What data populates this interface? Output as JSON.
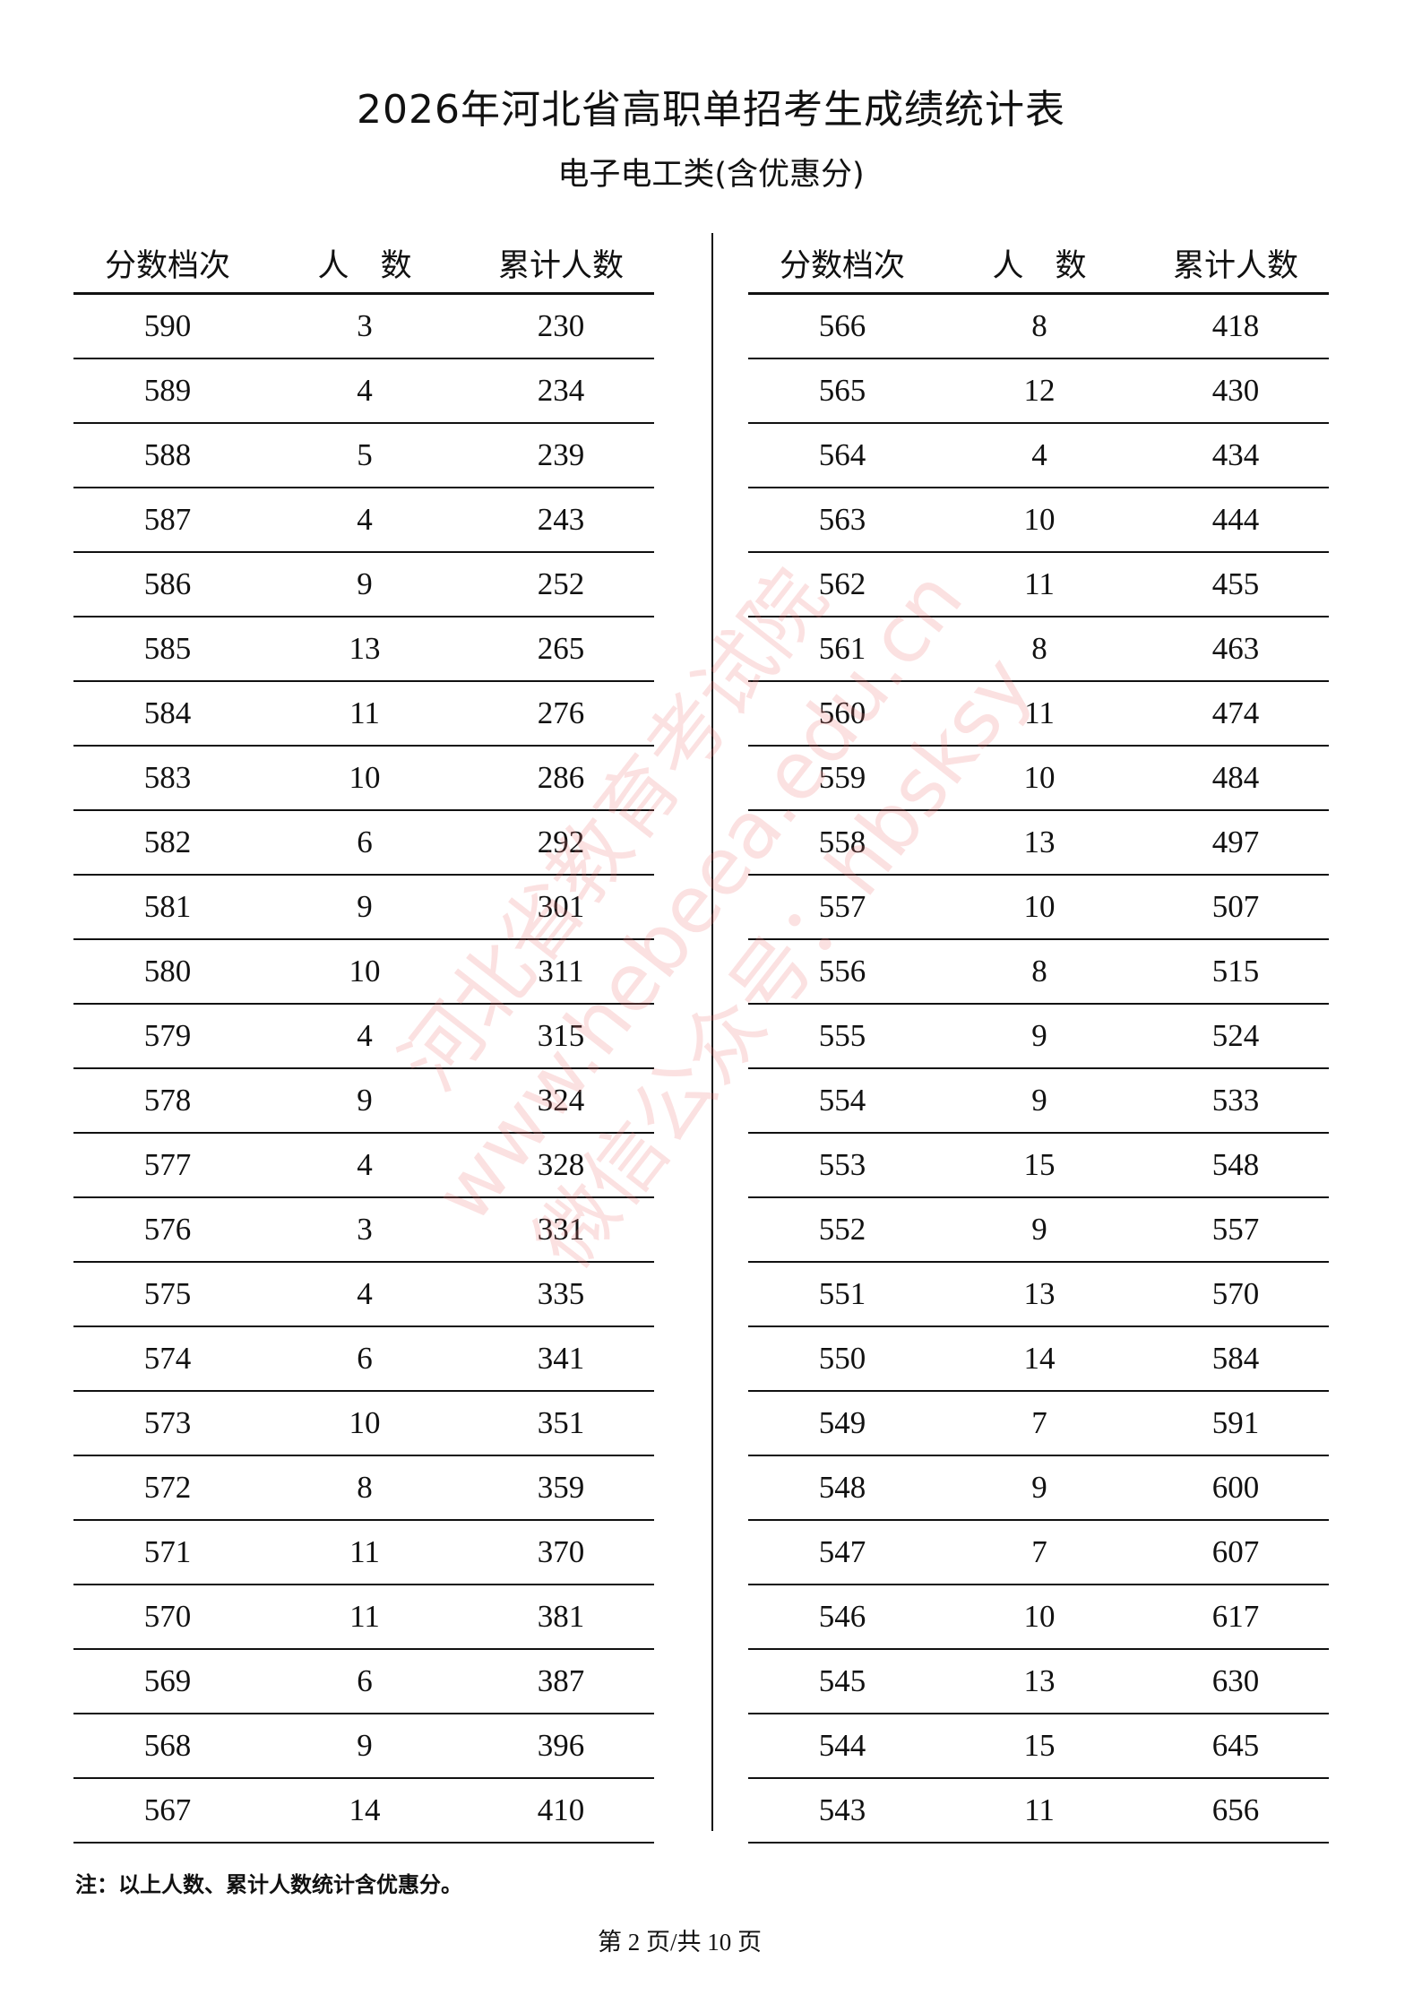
{
  "title": "2026年河北省高职单招考生成绩统计表",
  "subtitle": "电子电工类(含优惠分)",
  "headers": [
    "分数档次",
    "人　数",
    "累计人数"
  ],
  "left_rows": [
    [
      "590",
      "3",
      "230"
    ],
    [
      "589",
      "4",
      "234"
    ],
    [
      "588",
      "5",
      "239"
    ],
    [
      "587",
      "4",
      "243"
    ],
    [
      "586",
      "9",
      "252"
    ],
    [
      "585",
      "13",
      "265"
    ],
    [
      "584",
      "11",
      "276"
    ],
    [
      "583",
      "10",
      "286"
    ],
    [
      "582",
      "6",
      "292"
    ],
    [
      "581",
      "9",
      "301"
    ],
    [
      "580",
      "10",
      "311"
    ],
    [
      "579",
      "4",
      "315"
    ],
    [
      "578",
      "9",
      "324"
    ],
    [
      "577",
      "4",
      "328"
    ],
    [
      "576",
      "3",
      "331"
    ],
    [
      "575",
      "4",
      "335"
    ],
    [
      "574",
      "6",
      "341"
    ],
    [
      "573",
      "10",
      "351"
    ],
    [
      "572",
      "8",
      "359"
    ],
    [
      "571",
      "11",
      "370"
    ],
    [
      "570",
      "11",
      "381"
    ],
    [
      "569",
      "6",
      "387"
    ],
    [
      "568",
      "9",
      "396"
    ],
    [
      "567",
      "14",
      "410"
    ]
  ],
  "right_rows": [
    [
      "566",
      "8",
      "418"
    ],
    [
      "565",
      "12",
      "430"
    ],
    [
      "564",
      "4",
      "434"
    ],
    [
      "563",
      "10",
      "444"
    ],
    [
      "562",
      "11",
      "455"
    ],
    [
      "561",
      "8",
      "463"
    ],
    [
      "560",
      "11",
      "474"
    ],
    [
      "559",
      "10",
      "484"
    ],
    [
      "558",
      "13",
      "497"
    ],
    [
      "557",
      "10",
      "507"
    ],
    [
      "556",
      "8",
      "515"
    ],
    [
      "555",
      "9",
      "524"
    ],
    [
      "554",
      "9",
      "533"
    ],
    [
      "553",
      "15",
      "548"
    ],
    [
      "552",
      "9",
      "557"
    ],
    [
      "551",
      "13",
      "570"
    ],
    [
      "550",
      "14",
      "584"
    ],
    [
      "549",
      "7",
      "591"
    ],
    [
      "548",
      "9",
      "600"
    ],
    [
      "547",
      "7",
      "607"
    ],
    [
      "546",
      "10",
      "617"
    ],
    [
      "545",
      "13",
      "630"
    ],
    [
      "544",
      "15",
      "645"
    ],
    [
      "543",
      "11",
      "656"
    ]
  ],
  "note": "注：以上人数、累计人数统计含优惠分。",
  "footer": "第 2 页/共 10 页",
  "watermark": [
    "河北省教育考试院",
    "www.hebeea.edu.cn",
    "微信公众号：hbsksy"
  ],
  "colors": {
    "watermark": "#eb7878",
    "text": "#111111"
  }
}
